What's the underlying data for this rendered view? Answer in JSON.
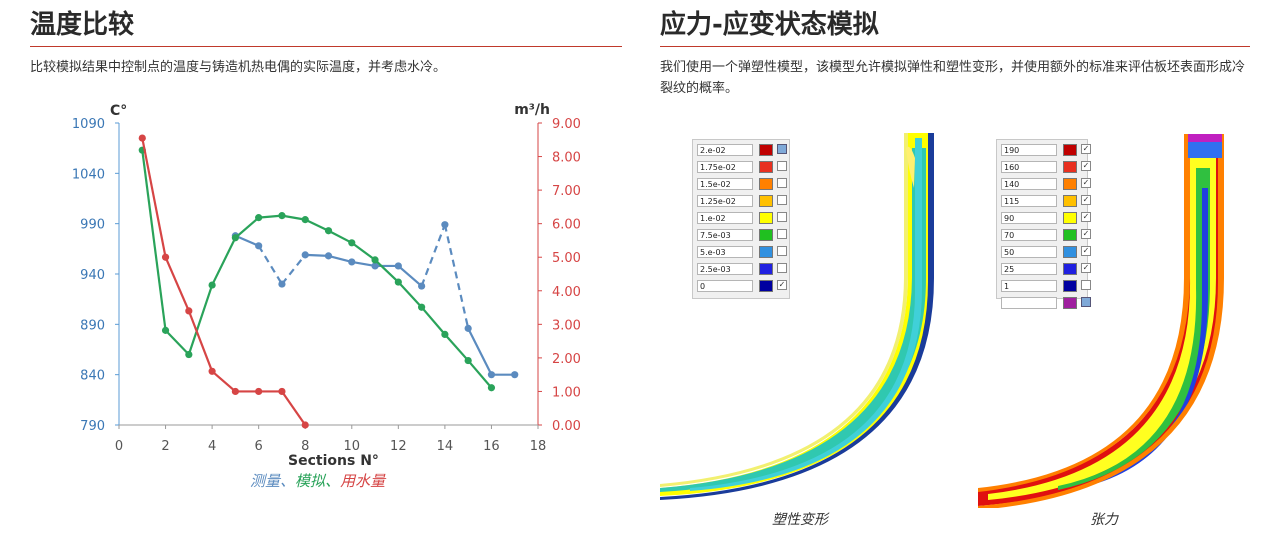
{
  "left": {
    "title": "温度比较",
    "description": "比较模拟结果中控制点的温度与铸造机热电偶的实际温度，并考虑水冷。",
    "legend": {
      "measured": "测量",
      "sep1": "、",
      "simulated": "模拟",
      "sep2": "、",
      "water": "用水量"
    }
  },
  "right": {
    "title": "应力-应变状态模拟",
    "description": "我们使用一个弹塑性模型，该模型允许模拟弹性和塑性变形，并使用额外的标准来评估板坯表面形成冷裂纹的概率。",
    "caption_plastic": "塑性变形",
    "caption_tension": "张力",
    "colorbar_plastic": {
      "labels": [
        "2.e-02",
        "1.75e-02",
        "1.5e-02",
        "1.25e-02",
        "1.e-02",
        "7.5e-03",
        "5.e-03",
        "2.5e-03",
        "0"
      ],
      "colors": [
        "#c00000",
        "#e83020",
        "#ff8000",
        "#ffc000",
        "#ffff00",
        "#20c020",
        "#3090e0",
        "#2020e0",
        "#0000a0"
      ]
    },
    "colorbar_tension": {
      "labels": [
        "190",
        "160",
        "140",
        "115",
        "90",
        "70",
        "50",
        "25",
        "1",
        ""
      ],
      "colors": [
        "#c00000",
        "#e83020",
        "#ff8000",
        "#ffc000",
        "#ffff00",
        "#20c020",
        "#3090e0",
        "#2020e0",
        "#0000a0",
        "#a020a0"
      ]
    }
  },
  "chart_data": {
    "type": "line",
    "xlabel": "Sections N°",
    "ylabel_left": "C°",
    "ylabel_right": "m³/h",
    "xlim": [
      0,
      18
    ],
    "ylim_left": [
      790,
      1090
    ],
    "ylim_right": [
      0,
      9
    ],
    "x_ticks": [
      0,
      2,
      4,
      6,
      8,
      10,
      12,
      14,
      16,
      18
    ],
    "y_left_ticks": [
      790,
      840,
      890,
      940,
      990,
      1040,
      1090
    ],
    "y_right_ticks": [
      "0.00",
      "1.00",
      "2.00",
      "3.00",
      "4.00",
      "5.00",
      "6.00",
      "7.00",
      "8.00",
      "9.00"
    ],
    "grid": false,
    "series": [
      {
        "name": "测量",
        "axis": "left",
        "color": "#5b8bbf",
        "points": [
          [
            5,
            978
          ],
          [
            6,
            968
          ],
          [
            7,
            930
          ],
          [
            8,
            959
          ],
          [
            9,
            958
          ],
          [
            10,
            952
          ],
          [
            11,
            948
          ],
          [
            12,
            948
          ],
          [
            13,
            928
          ],
          [
            14,
            989
          ],
          [
            15,
            886
          ],
          [
            16,
            840
          ],
          [
            17,
            840
          ]
        ],
        "dashed_segments": [
          [
            6,
            8
          ],
          [
            13,
            15
          ]
        ]
      },
      {
        "name": "模拟",
        "axis": "left",
        "color": "#2aa35a",
        "points": [
          [
            1,
            1063
          ],
          [
            2,
            884
          ],
          [
            3,
            860
          ],
          [
            4,
            929
          ],
          [
            5,
            976
          ],
          [
            6,
            996
          ],
          [
            7,
            998
          ],
          [
            8,
            994
          ],
          [
            9,
            983
          ],
          [
            10,
            971
          ],
          [
            11,
            954
          ],
          [
            12,
            932
          ],
          [
            13,
            907
          ],
          [
            14,
            880
          ],
          [
            15,
            854
          ],
          [
            16,
            827
          ]
        ]
      },
      {
        "name": "用水量",
        "axis": "right",
        "color": "#d64545",
        "points": [
          [
            1,
            8.55
          ],
          [
            2,
            5.0
          ],
          [
            3,
            3.4
          ],
          [
            4,
            1.6
          ],
          [
            5,
            1.0
          ],
          [
            6,
            1.0
          ],
          [
            7,
            1.0
          ],
          [
            8,
            0.0
          ]
        ]
      }
    ]
  }
}
